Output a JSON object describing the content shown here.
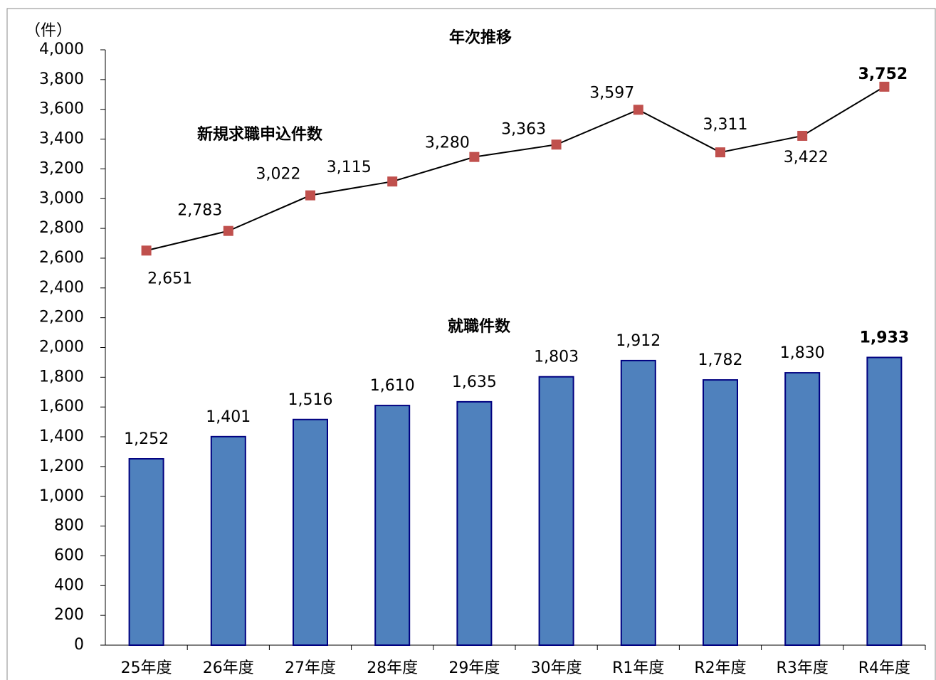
{
  "chart_data": {
    "type": "combo",
    "title": "年次推移",
    "y_label": "（件）",
    "categories": [
      "25年度",
      "26年度",
      "27年度",
      "28年度",
      "29年度",
      "30年度",
      "R1年度",
      "R2年度",
      "R3年度",
      "R4年度"
    ],
    "series": [
      {
        "name": "就職件数",
        "type": "bar",
        "color": "#4f81bd",
        "values": [
          1252,
          1401,
          1516,
          1610,
          1635,
          1803,
          1912,
          1782,
          1830,
          1933
        ],
        "value_labels": [
          "1,252",
          "1,401",
          "1,516",
          "1,610",
          "1,635",
          "1,803",
          "1,912",
          "1,782",
          "1,830",
          "1,933"
        ]
      },
      {
        "name": "新規求職申込件数",
        "type": "line",
        "color": "#c0504d",
        "values": [
          2651,
          2783,
          3022,
          3115,
          3280,
          3363,
          3597,
          3311,
          3422,
          3752
        ],
        "value_labels": [
          "2,651",
          "2,783",
          "3,022",
          "3,115",
          "3,280",
          "3,363",
          "3,597",
          "3,311",
          "3,422",
          "3,752"
        ]
      }
    ],
    "ylim": [
      0,
      4000
    ],
    "yticks": [
      0,
      200,
      400,
      600,
      800,
      {
        "value": 1000,
        "label": "1,000"
      },
      {
        "value": 1200,
        "label": "1,200"
      },
      {
        "value": 1400,
        "label": "1,400"
      },
      {
        "value": 1600,
        "label": "1,600"
      },
      {
        "value": 1800,
        "label": "1,800"
      },
      {
        "value": 2000,
        "label": "2,000"
      },
      {
        "value": 2200,
        "label": "2,200"
      },
      {
        "value": 2400,
        "label": "2,400"
      },
      {
        "value": 2600,
        "label": "2,600"
      },
      {
        "value": 2800,
        "label": "2,800"
      },
      {
        "value": 3000,
        "label": "3,000"
      },
      {
        "value": 3200,
        "label": "3,200"
      },
      {
        "value": 3400,
        "label": "3,400"
      },
      {
        "value": 3600,
        "label": "3,600"
      },
      {
        "value": 3800,
        "label": "3,800"
      },
      {
        "value": 4000,
        "label": "4,000"
      }
    ],
    "grid": false
  }
}
